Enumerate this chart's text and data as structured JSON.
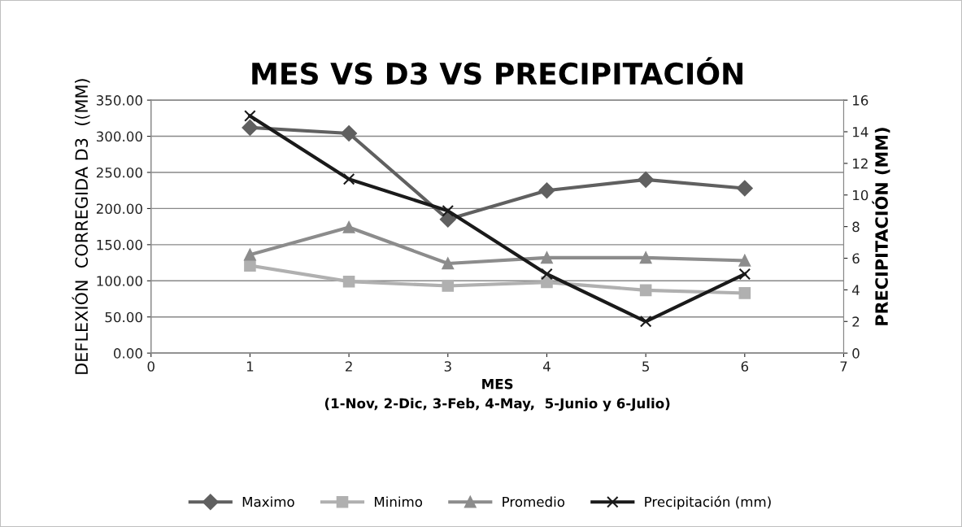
{
  "chart_data": {
    "type": "line",
    "title": "MES VS D3 VS PRECIPITACIÓN",
    "xlabel": "MES\n(1-Nov, 2-Dic, 3-Feb, 4-May,  5-Junio y 6-Julio)",
    "ylabel": "DEFLEXIÓN  CORREGIDA D3  ((MM)",
    "y2label": "PRECIPITACIÓN (MM)",
    "x": [
      1,
      2,
      3,
      4,
      5,
      6
    ],
    "series": [
      {
        "name": "Maximo",
        "color": "#606060",
        "marker": "diamond",
        "values": [
          312,
          304,
          185,
          225,
          240,
          228
        ]
      },
      {
        "name": "Minimo",
        "color": "#b0b0b0",
        "marker": "square",
        "values": [
          121,
          99,
          93,
          98,
          87,
          83
        ]
      },
      {
        "name": "Promedio",
        "color": "#8c8c8c",
        "marker": "triangle",
        "values": [
          136,
          174,
          124,
          132,
          132,
          128
        ]
      },
      {
        "name": "Precipitación (mm)",
        "color": "#1a1a1a",
        "marker": "cross",
        "axis": "y2",
        "values": [
          15,
          11,
          9,
          5,
          2,
          5
        ]
      }
    ],
    "xlim": [
      0,
      7
    ],
    "xticks": [
      0,
      1,
      2,
      3,
      4,
      5,
      6,
      7
    ],
    "ylim": [
      0,
      350
    ],
    "yticks": [
      {
        "value": 0,
        "label": "0.00"
      },
      {
        "value": 50,
        "label": "50.00"
      },
      {
        "value": 100,
        "label": "100.00"
      },
      {
        "value": 150,
        "label": "150.00"
      },
      {
        "value": 200,
        "label": "200.00"
      },
      {
        "value": 250,
        "label": "250.00"
      },
      {
        "value": 300,
        "label": "300.00"
      },
      {
        "value": 350,
        "label": "350.00"
      }
    ],
    "y2lim": [
      0,
      16
    ],
    "y2ticks": [
      0,
      2,
      4,
      6,
      8,
      10,
      12,
      14,
      16
    ],
    "grid": "y",
    "legend": "bottom",
    "line_style": "solid"
  }
}
